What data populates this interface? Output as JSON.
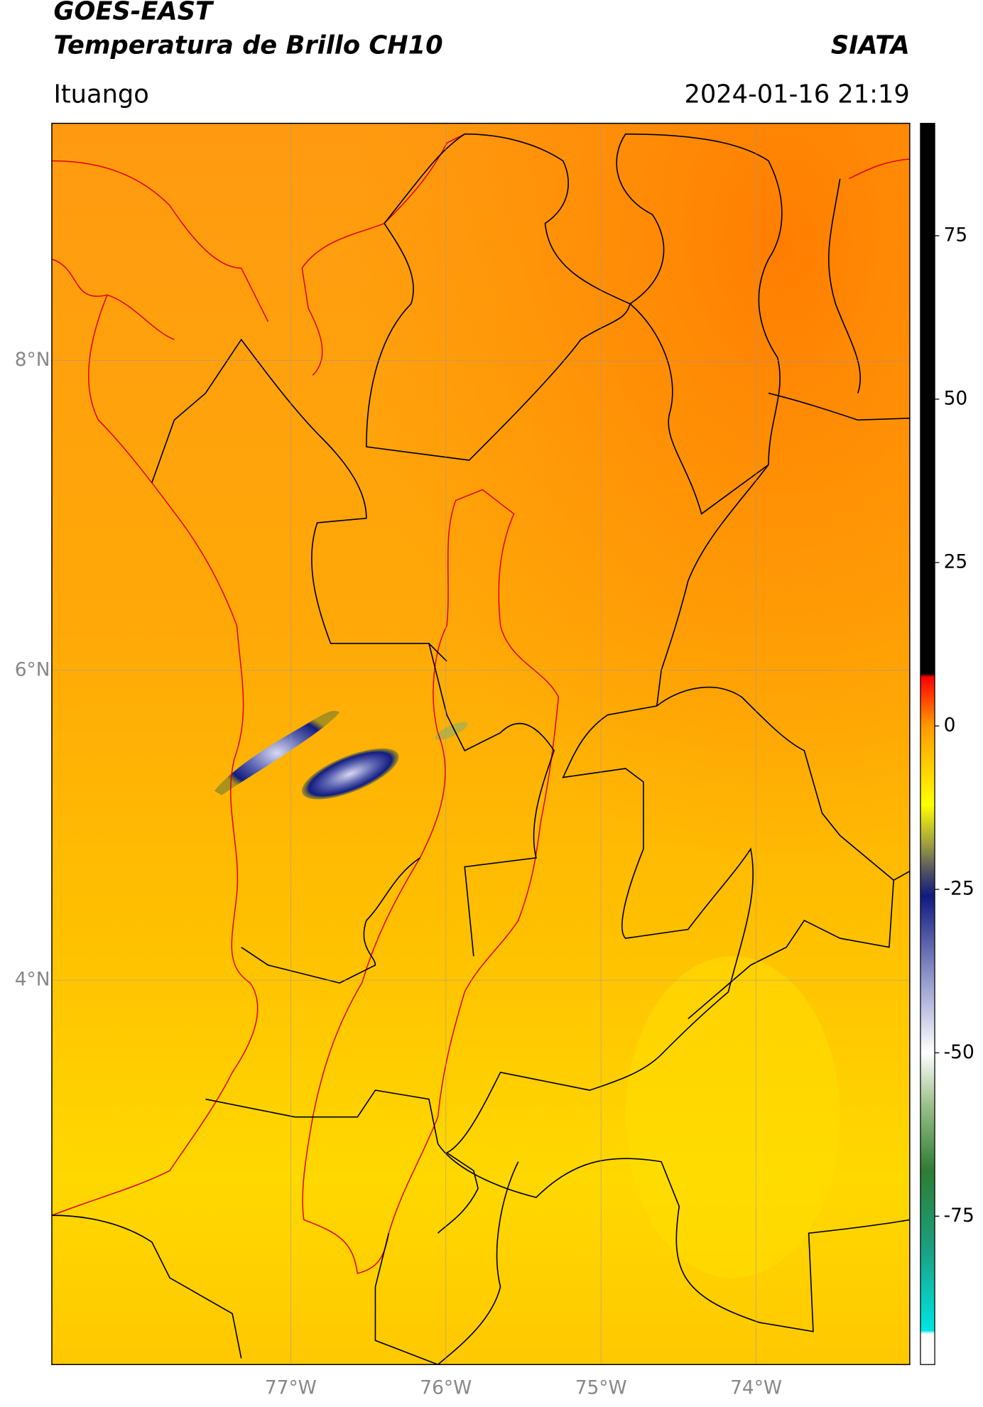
{
  "header": {
    "title": "GOES-EAST",
    "subtitle": "Temperatura de Brillo CH10",
    "source": "SIATA",
    "location": "Ituango",
    "datetime": "2024-01-16 21:19"
  },
  "map": {
    "xlim": [
      -78.54,
      -73.01
    ],
    "ylim": [
      1.52,
      9.53
    ],
    "xticks": [
      {
        "value": -77,
        "label": "77°W"
      },
      {
        "value": -76,
        "label": "76°W"
      },
      {
        "value": -75,
        "label": "75°W"
      },
      {
        "value": -74,
        "label": "74°W"
      }
    ],
    "yticks": [
      {
        "value": 8,
        "label": "8°N"
      },
      {
        "value": 6,
        "label": "6°N"
      },
      {
        "value": 4,
        "label": "4°N"
      }
    ],
    "grid": true
  },
  "colorbar": {
    "lim": [
      -97.7,
      92.2
    ],
    "ticks": [
      75,
      50,
      25,
      0,
      -25,
      -50,
      -75
    ],
    "colormap": [
      {
        "value": -97.7,
        "color": "#ffffff"
      },
      {
        "value": -93,
        "color": "#ffffff"
      },
      {
        "value": -92.5,
        "color": "#00e5e5"
      },
      {
        "value": -80,
        "color": "#1aa080"
      },
      {
        "value": -68,
        "color": "#2e7d32"
      },
      {
        "value": -58,
        "color": "#9bc08a"
      },
      {
        "value": -50,
        "color": "#ffffff"
      },
      {
        "value": -38,
        "color": "#8c92c8"
      },
      {
        "value": -26,
        "color": "#101a80"
      },
      {
        "value": -22,
        "color": "#555560"
      },
      {
        "value": -18,
        "color": "#a0a040"
      },
      {
        "value": -12,
        "color": "#ffff00"
      },
      {
        "value": 0,
        "color": "#ff9a00"
      },
      {
        "value": 7.5,
        "color": "#ff0000"
      },
      {
        "value": 8,
        "color": "#000000"
      },
      {
        "value": 92.2,
        "color": "#000000"
      }
    ]
  }
}
